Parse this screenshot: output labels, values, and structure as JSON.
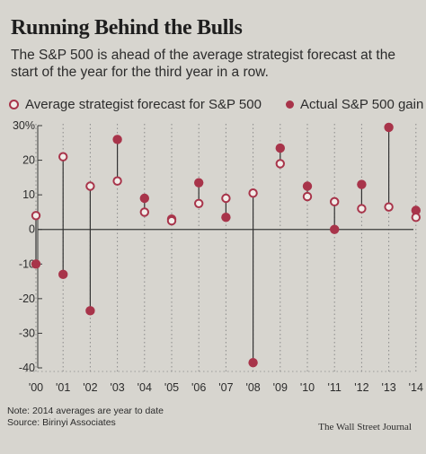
{
  "header": {
    "title": "Running Behind the Bulls",
    "subtitle": "The S&P 500 is ahead of the average strategist forecast at the start of the year for the third year in a row."
  },
  "legend": {
    "forecast": "Average strategist forecast for S&P 500",
    "actual": "Actual S&P 500 gain"
  },
  "footer": {
    "note": "Note: 2014 averages are year to date",
    "source": "Source: Birinyi Associates",
    "publisher": "The Wall Street Journal"
  },
  "colors": {
    "marker": "#a8344a",
    "open_fill": "#f1ece8",
    "grid": "#8a8a8a",
    "axis": "#3a3a3a",
    "background": "#d7d5cf"
  },
  "chart_data": {
    "type": "scatter",
    "title": "Running Behind the Bulls",
    "categories": [
      "'00",
      "'01",
      "'02",
      "'03",
      "'04",
      "'05",
      "'06",
      "'07",
      "'08",
      "'09",
      "'10",
      "'11",
      "'12",
      "'13",
      "'14"
    ],
    "y_tick_labels": [
      "30%",
      "20",
      "10",
      "0",
      "-10",
      "-20",
      "-30",
      "-40"
    ],
    "y_ticks": [
      30,
      20,
      10,
      0,
      -10,
      -20,
      -30,
      -40
    ],
    "ylim": [
      -40,
      30
    ],
    "grid": "vertical dotted lines at each year",
    "series": [
      {
        "name": "Average strategist forecast for S&P 500",
        "marker": "open",
        "values": [
          4,
          21,
          12.5,
          14,
          5,
          2.5,
          7.5,
          9,
          10.5,
          19,
          9.5,
          8,
          6,
          6.5,
          3.5
        ]
      },
      {
        "name": "Actual S&P 500 gain",
        "marker": "filled",
        "values": [
          -10,
          -13,
          -23.5,
          26,
          9,
          3,
          13.5,
          3.5,
          -38.5,
          23.5,
          12.5,
          0,
          13,
          29.5,
          5.5
        ]
      }
    ]
  }
}
